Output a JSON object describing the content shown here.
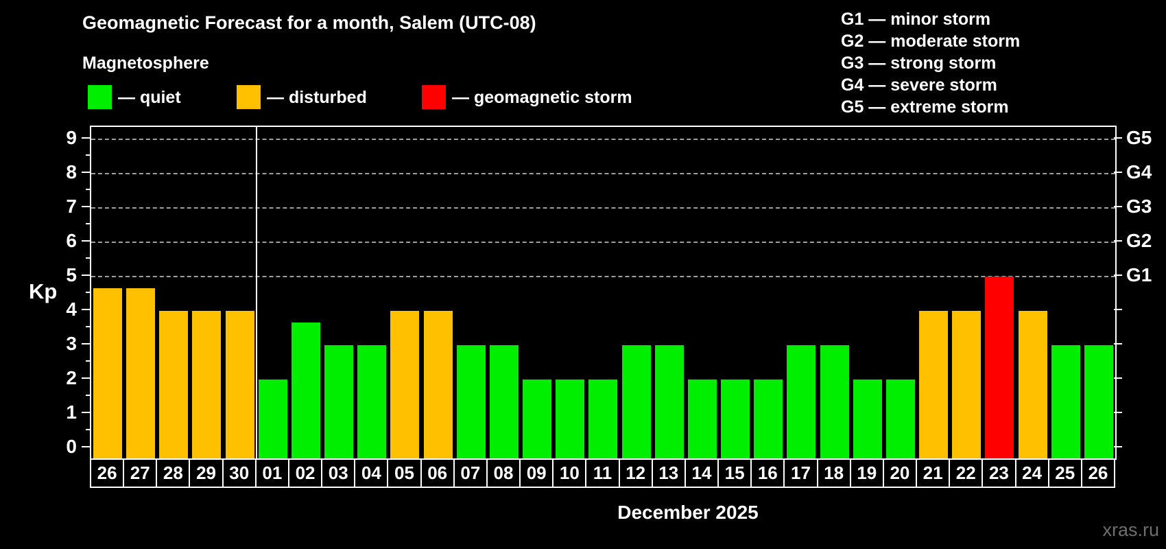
{
  "title": "Geomagnetic Forecast for a month, Salem (UTC-08)",
  "subtitle": "Magnetosphere",
  "legend": [
    {
      "name": "quiet",
      "label": "— quiet",
      "color": "#00ee00"
    },
    {
      "name": "disturbed",
      "label": "— disturbed",
      "color": "#ffc000"
    },
    {
      "name": "storm",
      "label": "— geomagnetic storm",
      "color": "#ff0000"
    }
  ],
  "g_legend": [
    "G1 — minor storm",
    "G2 — moderate storm",
    "G3 — strong storm",
    "G4 — severe storm",
    "G5 — extreme storm"
  ],
  "watermark": "xras.ru",
  "chart_data": {
    "type": "bar",
    "title": "Geomagnetic Forecast for a month, Salem (UTC-08)",
    "xlabel": "December 2025",
    "ylabel": "Kp",
    "ylim": [
      0,
      9.3
    ],
    "y_ticks": [
      0,
      1,
      2,
      3,
      4,
      5,
      6,
      7,
      8,
      9
    ],
    "gridlines_at": [
      5,
      6,
      7,
      8,
      9
    ],
    "grid": "dashed horizontal at Kp 5-9",
    "legend_position": "top-left",
    "categories": [
      "26",
      "27",
      "28",
      "29",
      "30",
      "01",
      "02",
      "03",
      "04",
      "05",
      "06",
      "07",
      "08",
      "09",
      "10",
      "11",
      "12",
      "13",
      "14",
      "15",
      "16",
      "17",
      "18",
      "19",
      "20",
      "21",
      "22",
      "23",
      "24",
      "25",
      "26"
    ],
    "values": [
      4.67,
      4.67,
      4,
      4,
      4,
      2,
      3.67,
      3,
      3,
      4,
      4,
      3,
      3,
      2,
      2,
      2,
      3,
      3,
      2,
      2,
      2,
      3,
      3,
      2,
      2,
      4,
      4,
      5,
      4,
      3,
      3
    ],
    "statuses": [
      "disturbed",
      "disturbed",
      "disturbed",
      "disturbed",
      "disturbed",
      "quiet",
      "quiet",
      "quiet",
      "quiet",
      "disturbed",
      "disturbed",
      "quiet",
      "quiet",
      "quiet",
      "quiet",
      "quiet",
      "quiet",
      "quiet",
      "quiet",
      "quiet",
      "quiet",
      "quiet",
      "quiet",
      "quiet",
      "quiet",
      "disturbed",
      "disturbed",
      "storm",
      "disturbed",
      "quiet",
      "quiet"
    ],
    "status_colors": {
      "quiet": "#00ee00",
      "disturbed": "#ffc000",
      "storm": "#ff0000"
    },
    "right_axis": [
      {
        "kp": 5,
        "label": "G1"
      },
      {
        "kp": 6,
        "label": "G2"
      },
      {
        "kp": 7,
        "label": "G3"
      },
      {
        "kp": 8,
        "label": "G4"
      },
      {
        "kp": 9,
        "label": "G5"
      }
    ],
    "month_boundary_index": 5
  }
}
